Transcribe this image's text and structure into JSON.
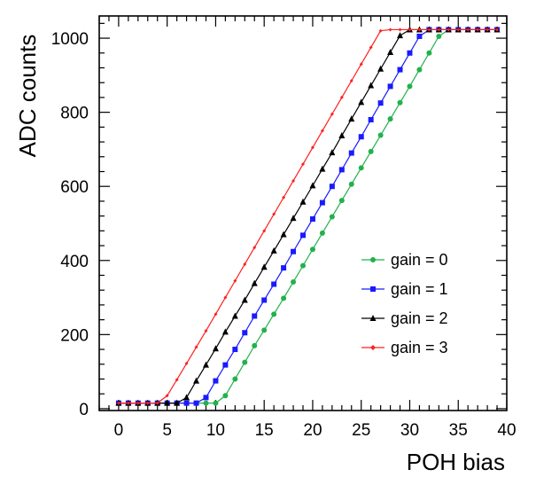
{
  "chart_data": {
    "type": "line",
    "title": "",
    "xlabel": "POH bias",
    "ylabel": "ADC counts",
    "xlim": [
      -2,
      40
    ],
    "ylim": [
      -5,
      1060
    ],
    "x_ticks": [
      0,
      5,
      10,
      15,
      20,
      25,
      30,
      35,
      40
    ],
    "y_ticks": [
      0,
      200,
      400,
      600,
      800,
      1000
    ],
    "legend_position": "right-middle",
    "grid": false,
    "series": [
      {
        "name": "gain = 0",
        "color": "#22b14c",
        "marker": "circle",
        "x": [
          0,
          1,
          2,
          3,
          4,
          5,
          6,
          7,
          8,
          9,
          10,
          11,
          12,
          13,
          14,
          15,
          16,
          17,
          18,
          19,
          20,
          21,
          22,
          23,
          24,
          25,
          26,
          27,
          28,
          29,
          30,
          31,
          32,
          33,
          34,
          35,
          36,
          37,
          38,
          39
        ],
        "values": [
          15,
          15,
          15,
          15,
          15,
          15,
          15,
          15,
          15,
          15,
          15,
          35,
          80,
          125,
          170,
          212,
          255,
          298,
          342,
          386,
          430,
          474,
          518,
          562,
          606,
          650,
          694,
          738,
          782,
          826,
          870,
          915,
          960,
          1005,
          1023,
          1023,
          1023,
          1023,
          1023,
          1023
        ]
      },
      {
        "name": "gain = 1",
        "color": "#1a1aff",
        "marker": "square",
        "x": [
          0,
          1,
          2,
          3,
          4,
          5,
          6,
          7,
          8,
          9,
          10,
          11,
          12,
          13,
          14,
          15,
          16,
          17,
          18,
          19,
          20,
          21,
          22,
          23,
          24,
          25,
          26,
          27,
          28,
          29,
          30,
          31,
          32,
          33,
          34,
          35,
          36,
          37,
          38,
          39
        ],
        "values": [
          15,
          15,
          15,
          15,
          15,
          15,
          15,
          15,
          15,
          30,
          75,
          118,
          160,
          205,
          250,
          293,
          336,
          380,
          424,
          468,
          512,
          556,
          600,
          645,
          690,
          734,
          780,
          825,
          870,
          915,
          960,
          1005,
          1023,
          1023,
          1023,
          1023,
          1023,
          1023,
          1023,
          1023
        ]
      },
      {
        "name": "gain = 2",
        "color": "#000000",
        "marker": "triangle",
        "x": [
          0,
          1,
          2,
          3,
          4,
          5,
          6,
          7,
          8,
          9,
          10,
          11,
          12,
          13,
          14,
          15,
          16,
          17,
          18,
          19,
          20,
          21,
          22,
          23,
          24,
          25,
          26,
          27,
          28,
          29,
          30,
          31,
          32,
          33,
          34,
          35,
          36,
          37,
          38,
          39
        ],
        "values": [
          15,
          15,
          15,
          15,
          15,
          15,
          15,
          30,
          75,
          118,
          162,
          207,
          250,
          293,
          338,
          382,
          426,
          470,
          514,
          558,
          602,
          647,
          691,
          737,
          782,
          827,
          872,
          917,
          962,
          1007,
          1023,
          1023,
          1023,
          1023,
          1023,
          1023,
          1023,
          1023,
          1023,
          1023
        ]
      },
      {
        "name": "gain = 3",
        "color": "#ff2020",
        "marker": "star",
        "x": [
          0,
          1,
          2,
          3,
          4,
          5,
          6,
          7,
          8,
          9,
          10,
          11,
          12,
          13,
          14,
          15,
          16,
          17,
          18,
          19,
          20,
          21,
          22,
          23,
          24,
          25,
          26,
          27,
          28,
          29,
          30,
          31,
          32,
          33,
          34,
          35,
          36,
          37,
          38,
          39
        ],
        "values": [
          15,
          15,
          15,
          15,
          15,
          35,
          78,
          122,
          166,
          210,
          255,
          300,
          345,
          390,
          435,
          480,
          525,
          570,
          615,
          660,
          705,
          750,
          795,
          840,
          885,
          930,
          975,
          1020,
          1023,
          1023,
          1023,
          1023,
          1023,
          1023,
          1023,
          1023,
          1023,
          1023,
          1023,
          1023
        ]
      }
    ]
  }
}
